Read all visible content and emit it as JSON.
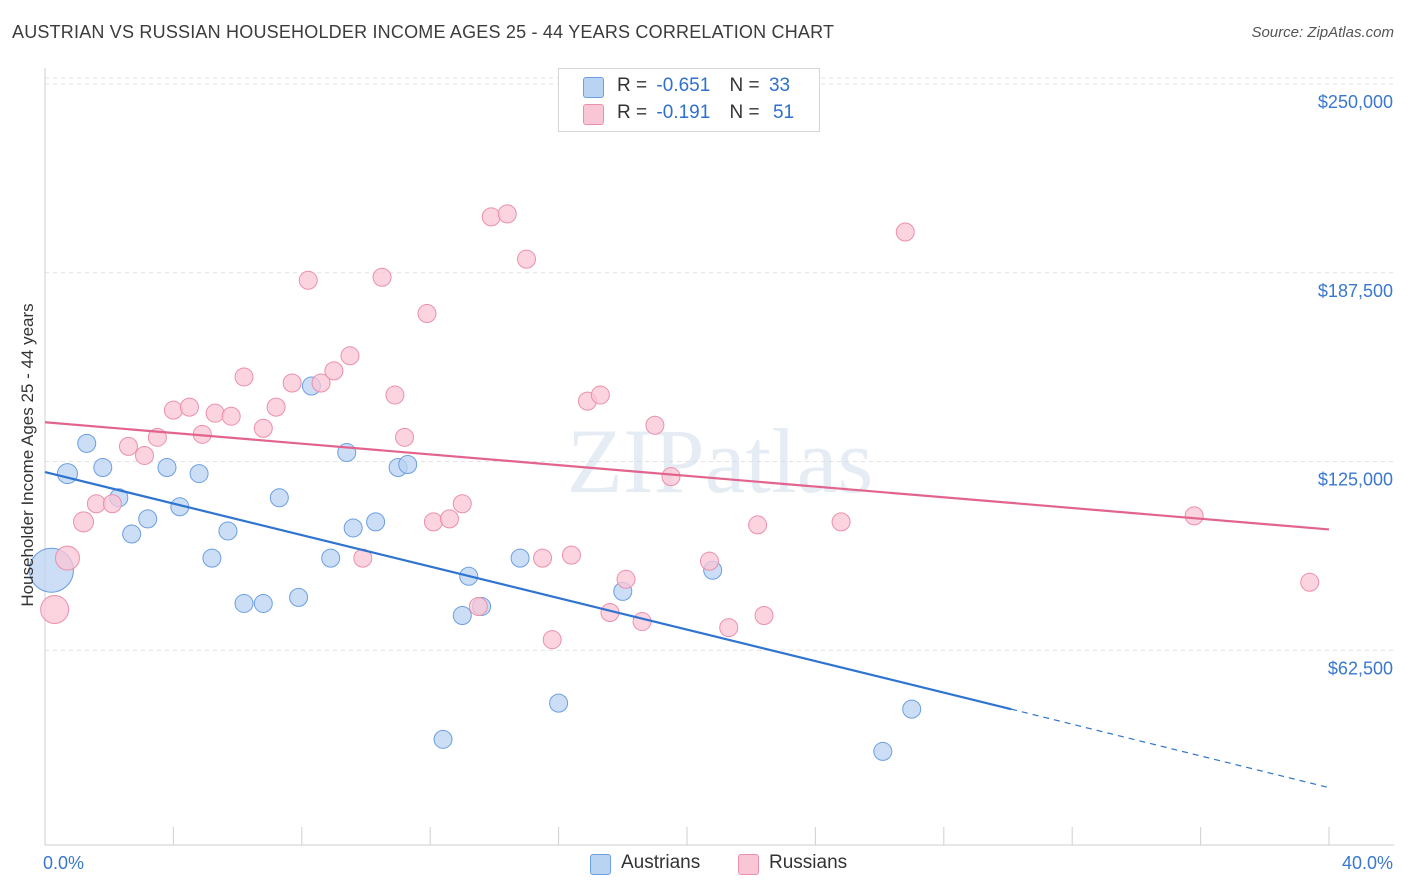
{
  "title": "AUSTRIAN VS RUSSIAN HOUSEHOLDER INCOME AGES 25 - 44 YEARS CORRELATION CHART",
  "source": "Source: ZipAtlas.com",
  "watermark": "ZIPatlas",
  "colors": {
    "austrians_fill": "#b9d3f3",
    "austrians_stroke": "#6c9fe0",
    "austrians_line": "#2f74d0",
    "russians_fill": "#f9c6d5",
    "russians_stroke": "#ec8fac",
    "russians_line": "#e2648d",
    "tick_label": "#3a78d0",
    "grid": "#e2e2e2"
  },
  "legend": {
    "austrians": {
      "r_label": "R =",
      "r_value": "-0.651",
      "n_label": "N =",
      "n_value": "33"
    },
    "russians": {
      "r_label": "R =",
      "r_value": "-0.191",
      "n_label": "N =",
      "n_value": "51"
    }
  },
  "bottom_legend": [
    "Austrians",
    "Russians"
  ],
  "chart_data": {
    "type": "scatter",
    "title": "AUSTRIAN VS RUSSIAN HOUSEHOLDER INCOME AGES 25 - 44 YEARS CORRELATION CHART",
    "xlabel": "",
    "ylabel": "Householder Income Ages 25 - 44 years",
    "xlim": [
      0,
      40
    ],
    "ylim": [
      0,
      250000
    ],
    "x_tick_labels": [
      "0.0%",
      "40.0%"
    ],
    "y_ticks": [
      62500,
      125000,
      187500,
      250000
    ],
    "y_tick_labels": [
      "$62,500",
      "$125,000",
      "$187,500",
      "$250,000"
    ],
    "grid": true,
    "legend_placement": "top-center",
    "series": [
      {
        "name": "Austrians",
        "points": [
          [
            0.2,
            89000,
            22
          ],
          [
            0.7,
            121000,
            10
          ],
          [
            1.3,
            131000,
            9
          ],
          [
            1.8,
            123000,
            9
          ],
          [
            2.3,
            113000,
            9
          ],
          [
            2.7,
            101000,
            9
          ],
          [
            3.2,
            106000,
            9
          ],
          [
            3.8,
            123000,
            9
          ],
          [
            4.2,
            110000,
            9
          ],
          [
            4.8,
            121000,
            9
          ],
          [
            5.2,
            93000,
            9
          ],
          [
            5.7,
            102000,
            9
          ],
          [
            6.2,
            78000,
            9
          ],
          [
            6.8,
            78000,
            9
          ],
          [
            7.3,
            113000,
            9
          ],
          [
            7.9,
            80000,
            9
          ],
          [
            8.3,
            150000,
            9
          ],
          [
            8.9,
            93000,
            9
          ],
          [
            9.4,
            128000,
            9
          ],
          [
            9.6,
            103000,
            9
          ],
          [
            10.3,
            105000,
            9
          ],
          [
            11.0,
            123000,
            9
          ],
          [
            11.3,
            124000,
            9
          ],
          [
            12.4,
            33000,
            9
          ],
          [
            13.0,
            74000,
            9
          ],
          [
            13.2,
            87000,
            9
          ],
          [
            13.6,
            77000,
            9
          ],
          [
            14.8,
            93000,
            9
          ],
          [
            16.0,
            45000,
            9
          ],
          [
            18.0,
            82000,
            9
          ],
          [
            20.8,
            89000,
            9
          ],
          [
            26.1,
            29000,
            9
          ],
          [
            27.0,
            43000,
            9
          ]
        ],
        "trend": {
          "x": [
            0,
            30.1
          ],
          "y": [
            121500,
            43000
          ],
          "dashed_to": [
            40,
            17000
          ]
        }
      },
      {
        "name": "Russians",
        "points": [
          [
            0.3,
            76000,
            14
          ],
          [
            0.7,
            93000,
            12
          ],
          [
            1.2,
            105000,
            10
          ],
          [
            1.6,
            111000,
            9
          ],
          [
            2.1,
            111000,
            9
          ],
          [
            2.6,
            130000,
            9
          ],
          [
            3.1,
            127000,
            9
          ],
          [
            3.5,
            133000,
            9
          ],
          [
            4.0,
            142000,
            9
          ],
          [
            4.5,
            143000,
            9
          ],
          [
            4.9,
            134000,
            9
          ],
          [
            5.3,
            141000,
            9
          ],
          [
            5.8,
            140000,
            9
          ],
          [
            6.2,
            153000,
            9
          ],
          [
            6.8,
            136000,
            9
          ],
          [
            7.2,
            143000,
            9
          ],
          [
            7.7,
            151000,
            9
          ],
          [
            8.2,
            185000,
            9
          ],
          [
            8.6,
            151000,
            9
          ],
          [
            9.0,
            155000,
            9
          ],
          [
            9.5,
            160000,
            9
          ],
          [
            9.9,
            93000,
            9
          ],
          [
            10.5,
            186000,
            9
          ],
          [
            10.9,
            147000,
            9
          ],
          [
            11.2,
            133000,
            9
          ],
          [
            11.9,
            174000,
            9
          ],
          [
            12.1,
            105000,
            9
          ],
          [
            12.6,
            106000,
            9
          ],
          [
            13.0,
            111000,
            9
          ],
          [
            13.5,
            77000,
            9
          ],
          [
            13.9,
            206000,
            9
          ],
          [
            14.4,
            207000,
            9
          ],
          [
            15.0,
            192000,
            9
          ],
          [
            15.5,
            93000,
            9
          ],
          [
            15.8,
            66000,
            9
          ],
          [
            16.4,
            94000,
            9
          ],
          [
            16.9,
            145000,
            9
          ],
          [
            17.3,
            147000,
            9
          ],
          [
            17.6,
            75000,
            9
          ],
          [
            18.1,
            86000,
            9
          ],
          [
            18.6,
            72000,
            9
          ],
          [
            19.0,
            137000,
            9
          ],
          [
            19.5,
            120000,
            9
          ],
          [
            20.7,
            92000,
            9
          ],
          [
            21.3,
            70000,
            9
          ],
          [
            22.2,
            104000,
            9
          ],
          [
            22.4,
            74000,
            9
          ],
          [
            24.8,
            105000,
            9
          ],
          [
            26.8,
            201000,
            9
          ],
          [
            35.8,
            107000,
            9
          ],
          [
            39.4,
            85000,
            9
          ]
        ],
        "trend": {
          "x": [
            0,
            40
          ],
          "y": [
            138000,
            102500
          ]
        }
      }
    ]
  }
}
